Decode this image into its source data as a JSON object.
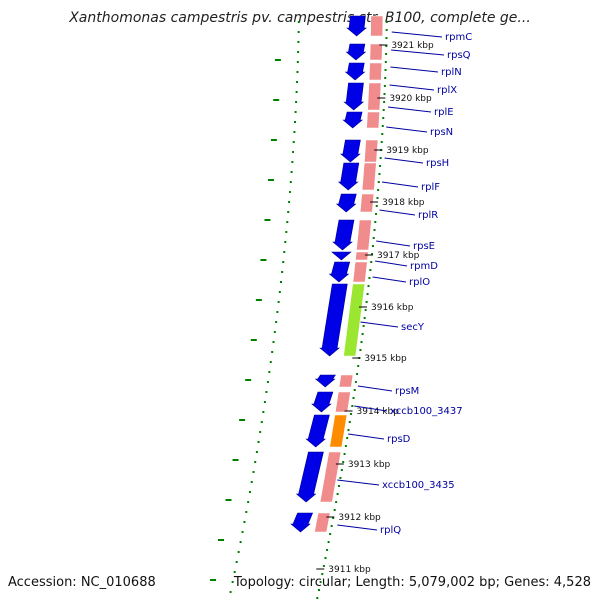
{
  "title": "Xanthomonas campestris pv. campestris str. B100, complete ge...",
  "footer": {
    "accession": "Accession: NC_010688",
    "topology": "Topology: circular; Length: 5,079,002 bp; Genes: 4,528"
  },
  "ticks": [
    {
      "kbp": 3921,
      "label": "3921 kbp"
    },
    {
      "kbp": 3920,
      "label": "3920 kbp"
    },
    {
      "kbp": 3919,
      "label": "3919 kbp"
    },
    {
      "kbp": 3918,
      "label": "3918 kbp"
    },
    {
      "kbp": 3917,
      "label": "3917 kbp"
    },
    {
      "kbp": 3916,
      "label": "3916 kbp"
    },
    {
      "kbp": 3915,
      "label": "3915 kbp"
    },
    {
      "kbp": 3914,
      "label": "3914 kbp"
    },
    {
      "kbp": 3913,
      "label": "3913 kbp"
    },
    {
      "kbp": 3912,
      "label": "3912 kbp"
    },
    {
      "kbp": 3911,
      "label": "3911 kbp"
    }
  ],
  "genes": [
    {
      "name": "rpmC"
    },
    {
      "name": "rpsQ"
    },
    {
      "name": "rplN"
    },
    {
      "name": "rplX"
    },
    {
      "name": "rplE"
    },
    {
      "name": "rpsN"
    },
    {
      "name": "rpsH"
    },
    {
      "name": "rplF"
    },
    {
      "name": "rplR"
    },
    {
      "name": "rpsE"
    },
    {
      "name": "rpmD"
    },
    {
      "name": "rplO"
    },
    {
      "name": "secY"
    },
    {
      "name": "rpsM"
    },
    {
      "name": "xccb100_3437"
    },
    {
      "name": "rpsD"
    },
    {
      "name": "xccb100_3435"
    },
    {
      "name": "rplQ"
    }
  ],
  "colors": {
    "cds_arrow": "#0000e6",
    "category_default": "#f08c8c",
    "category_secY": "#9be630",
    "category_xccb100_3435": "#ff8c00",
    "label_text": "#0000a0",
    "tick_dots": "#008000",
    "backbone": "#7a7a7a"
  }
}
